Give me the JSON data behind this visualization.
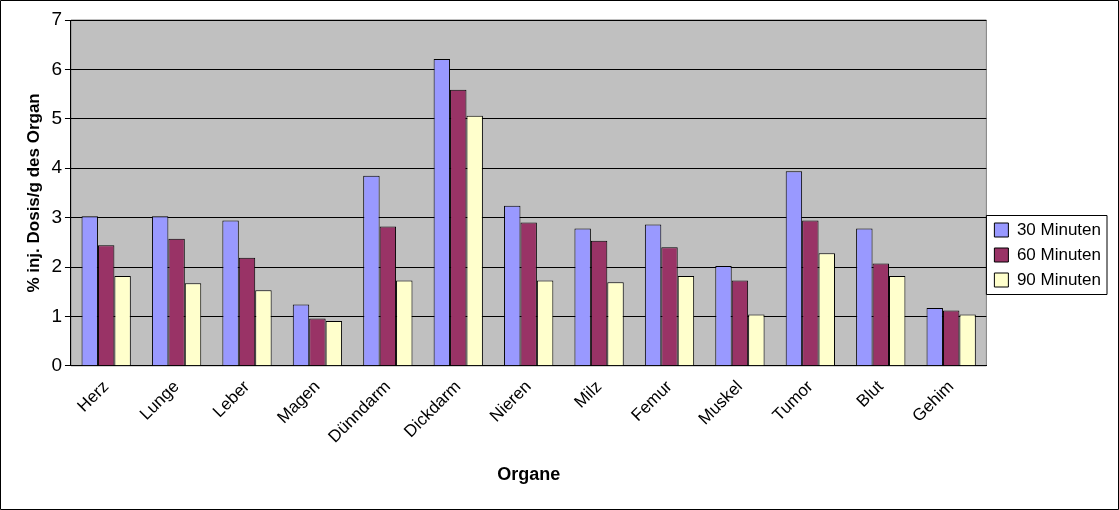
{
  "chart_data": {
    "type": "bar",
    "xlabel": "Organe",
    "ylabel": "% inj. Dosis/g des Organ",
    "categories": [
      "Herz",
      "Lunge",
      "Leber",
      "Magen",
      "Dünndarm",
      "Dickdarm",
      "Nieren",
      "Milz",
      "Femur",
      "Muskel",
      "Tumor",
      "Blut",
      "Gehim"
    ],
    "series": [
      {
        "name": "30 Minuten",
        "color": "#9999ff",
        "values": [
          3.03,
          3.03,
          2.94,
          1.24,
          3.85,
          6.21,
          3.24,
          2.78,
          2.86,
          2.02,
          3.94,
          2.78,
          1.17
        ]
      },
      {
        "name": "60 Minuten",
        "color": "#993366",
        "values": [
          2.44,
          2.57,
          2.19,
          0.96,
          2.82,
          5.59,
          2.9,
          2.53,
          2.4,
          1.73,
          2.94,
          2.07,
          1.12
        ]
      },
      {
        "name": "90 Minuten",
        "color": "#ffffcc",
        "values": [
          1.82,
          1.67,
          1.53,
          0.91,
          1.73,
          5.06,
          1.73,
          1.69,
          1.82,
          1.04,
          2.28,
          1.82,
          1.04
        ]
      }
    ],
    "ylim": [
      0,
      7
    ],
    "yticks": [
      0,
      1,
      2,
      3,
      4,
      5,
      6,
      7
    ],
    "grid": "y",
    "legend": "right"
  }
}
